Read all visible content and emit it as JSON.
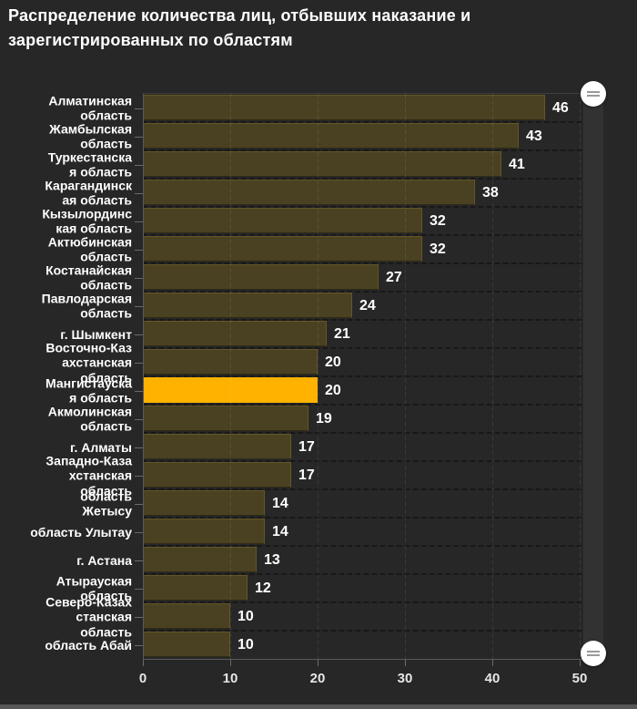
{
  "title": {
    "text": "Распределение количества лиц, отбывших наказание и зарегистрированных по областям"
  },
  "chart_data": {
    "type": "bar",
    "orientation": "horizontal",
    "title": "Распределение количества лиц, отбывших наказание и зарегистрированных по областям",
    "xlabel": "",
    "ylabel": "",
    "xlim": [
      0,
      50
    ],
    "x_ticks": [
      0,
      10,
      20,
      30,
      40,
      50
    ],
    "grid": "dashed",
    "legend": "none",
    "highlight_index": 10,
    "categories": [
      "Алматинская область",
      "Жамбылская область",
      "Туркестанская область",
      "Карагандинская область",
      "Кызылординская область",
      "Актюбинская область",
      "Костанайская область",
      "Павлодарская область",
      "г. Шымкент",
      "Восточно-Казахстанская область",
      "Мангистауская область",
      "Акмолинская область",
      "г. Алматы",
      "Западно-Казахстанская область",
      "область Жетысу",
      "область Улытау",
      "г. Астана",
      "Атырауская область",
      "Северо-Казахстанская область",
      "область Абай"
    ],
    "label_lines": [
      [
        "Алматинская",
        "область"
      ],
      [
        "Жамбылская",
        "область"
      ],
      [
        "Туркестанска",
        "я область"
      ],
      [
        "Карагандинск",
        "ая область"
      ],
      [
        "Кызылординс",
        "кая область"
      ],
      [
        "Актюбинская",
        "область"
      ],
      [
        "Костанайская",
        "область"
      ],
      [
        "Павлодарская",
        "область"
      ],
      [
        "г. Шымкент"
      ],
      [
        "Восточно-Каз",
        "ахстанская",
        "область"
      ],
      [
        "Мангистауска",
        "я область"
      ],
      [
        "Акмолинская",
        "область"
      ],
      [
        "г. Алматы"
      ],
      [
        "Западно-Каза",
        "хстанская",
        "область"
      ],
      [
        "область",
        "Жетысу"
      ],
      [
        "область Улытау"
      ],
      [
        "г. Астана"
      ],
      [
        "Атырауская",
        "область"
      ],
      [
        "Северо-Казах",
        "станская",
        "область"
      ],
      [
        "область Абай"
      ]
    ],
    "values": [
      46,
      43,
      41,
      38,
      32,
      32,
      27,
      24,
      21,
      20,
      20,
      19,
      17,
      17,
      14,
      14,
      13,
      12,
      10,
      10
    ]
  },
  "colors": {
    "background": "#272727",
    "bar": "#4a4122",
    "bar_border": "#645626",
    "highlight": "#ffb300",
    "text": "#ffffff",
    "axis": "#5a5a5a",
    "tick_label": "#e6e6e6",
    "scrollbar_track": "#323232",
    "scrollbar_handle": "#ffffff"
  },
  "scrollbar": {
    "top_handle_icon": "grip-lines-icon",
    "bottom_handle_icon": "grip-lines-icon"
  }
}
